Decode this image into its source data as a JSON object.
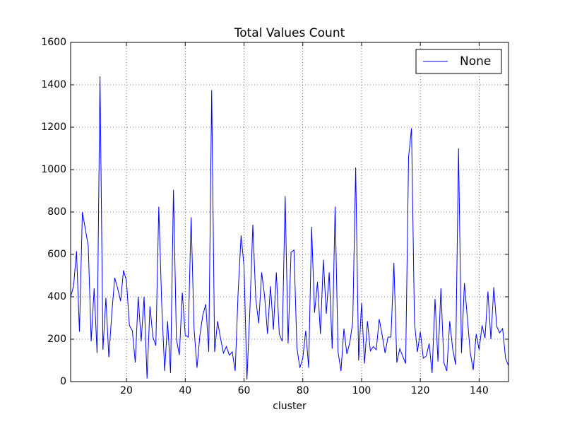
{
  "chart_data": {
    "type": "line",
    "title": "Total Values Count",
    "x_label": "cluster",
    "x": [
      1,
      2,
      3,
      4,
      5,
      6,
      7,
      8,
      9,
      10,
      11,
      12,
      13,
      14,
      15,
      16,
      17,
      18,
      19,
      20,
      21,
      22,
      23,
      24,
      25,
      26,
      27,
      28,
      29,
      30,
      31,
      32,
      33,
      34,
      35,
      36,
      37,
      38,
      39,
      40,
      41,
      42,
      43,
      44,
      45,
      46,
      47,
      48,
      49,
      50,
      51,
      52,
      53,
      54,
      55,
      56,
      57,
      58,
      59,
      60,
      61,
      62,
      63,
      64,
      65,
      66,
      67,
      68,
      69,
      70,
      71,
      72,
      73,
      74,
      75,
      76,
      77,
      78,
      79,
      80,
      81,
      82,
      83,
      84,
      85,
      86,
      87,
      88,
      89,
      90,
      91,
      92,
      93,
      94,
      95,
      96,
      97,
      98,
      99,
      100,
      101,
      102,
      103,
      104,
      105,
      106,
      107,
      108,
      109,
      110,
      111,
      112,
      113,
      114,
      115,
      116,
      117,
      118,
      119,
      120,
      121,
      122,
      123,
      124,
      125,
      126,
      127,
      128,
      129,
      130,
      131,
      132,
      133,
      134,
      135,
      136,
      137,
      138,
      139,
      140,
      141,
      142,
      143,
      144,
      145,
      146,
      147,
      148,
      149,
      150
    ],
    "series": [
      {
        "name": "None",
        "color": "#0000ff",
        "values": [
          400,
          450,
          615,
          235,
          800,
          720,
          640,
          190,
          440,
          135,
          1440,
          150,
          395,
          115,
          320,
          490,
          440,
          380,
          525,
          475,
          265,
          240,
          90,
          400,
          190,
          400,
          15,
          355,
          210,
          170,
          825,
          365,
          50,
          285,
          40,
          905,
          200,
          125,
          420,
          220,
          210,
          775,
          250,
          65,
          220,
          315,
          365,
          140,
          1375,
          140,
          285,
          205,
          135,
          165,
          125,
          140,
          50,
          420,
          690,
          545,
          10,
          340,
          740,
          390,
          275,
          515,
          405,
          225,
          450,
          245,
          515,
          225,
          190,
          875,
          180,
          610,
          620,
          160,
          65,
          110,
          240,
          65,
          730,
          325,
          470,
          225,
          575,
          320,
          515,
          155,
          825,
          140,
          50,
          250,
          130,
          185,
          280,
          1010,
          100,
          370,
          85,
          285,
          145,
          165,
          150,
          295,
          220,
          135,
          210,
          210,
          560,
          90,
          155,
          120,
          85,
          1060,
          1195,
          280,
          140,
          235,
          110,
          120,
          180,
          40,
          390,
          95,
          440,
          90,
          50,
          285,
          155,
          80,
          1100,
          135,
          465,
          300,
          135,
          55,
          225,
          150,
          265,
          205,
          425,
          200,
          445,
          260,
          230,
          250,
          110,
          75
        ]
      }
    ],
    "xlim": [
      1,
      150
    ],
    "xticks": [
      20,
      40,
      60,
      80,
      100,
      120,
      140
    ],
    "ylim": [
      0,
      1600
    ],
    "yticks": [
      0,
      200,
      400,
      600,
      800,
      1000,
      1200,
      1400,
      1600
    ],
    "grid": true,
    "legend": "upper right"
  }
}
